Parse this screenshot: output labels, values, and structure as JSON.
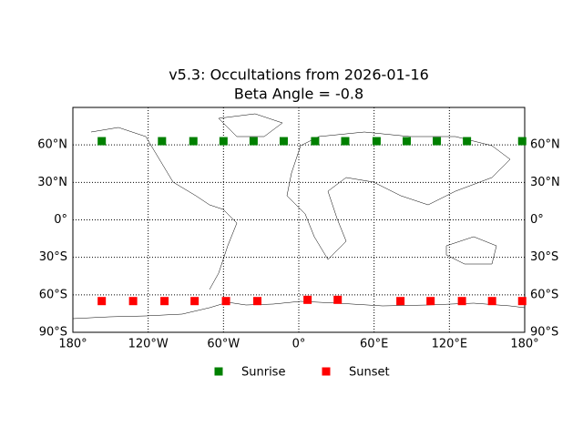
{
  "chart_data": {
    "type": "scatter",
    "title": "v5.3: Occultations from 2026-01-16",
    "subtitle": "Beta Angle = -0.8",
    "xlim": [
      -180,
      180
    ],
    "ylim": [
      -90,
      90
    ],
    "xticks": [
      {
        "value": -180,
        "label": "180°"
      },
      {
        "value": -120,
        "label": "120°W"
      },
      {
        "value": -60,
        "label": "60°W"
      },
      {
        "value": 0,
        "label": "0°"
      },
      {
        "value": 60,
        "label": "60°E"
      },
      {
        "value": 120,
        "label": "120°E"
      },
      {
        "value": 180,
        "label": "180°"
      }
    ],
    "yticks": [
      {
        "value": -90,
        "label": "90°S"
      },
      {
        "value": -60,
        "label": "60°S"
      },
      {
        "value": -30,
        "label": "30°S"
      },
      {
        "value": 0,
        "label": "0°"
      },
      {
        "value": 30,
        "label": "30°N"
      },
      {
        "value": 60,
        "label": "60°N"
      }
    ],
    "grid": true,
    "legend": "bottom",
    "series": [
      {
        "name": "Sunrise",
        "color": "#008000",
        "x": [
          -157,
          -109,
          -84,
          -60,
          -36,
          -12,
          13,
          37,
          62,
          86,
          110,
          134,
          178
        ],
        "values": [
          63,
          63,
          63,
          63,
          63,
          63,
          63,
          63,
          63,
          63,
          63,
          63,
          63
        ]
      },
      {
        "name": "Sunset",
        "color": "#ff0000",
        "x": [
          -157,
          -132,
          -107,
          -83,
          -58,
          -33,
          7,
          31,
          81,
          105,
          130,
          154,
          178
        ],
        "values": [
          -65,
          -65,
          -65,
          -65,
          -65,
          -65,
          -64,
          -64,
          -65,
          -65,
          -65,
          -65,
          -65
        ]
      }
    ]
  }
}
